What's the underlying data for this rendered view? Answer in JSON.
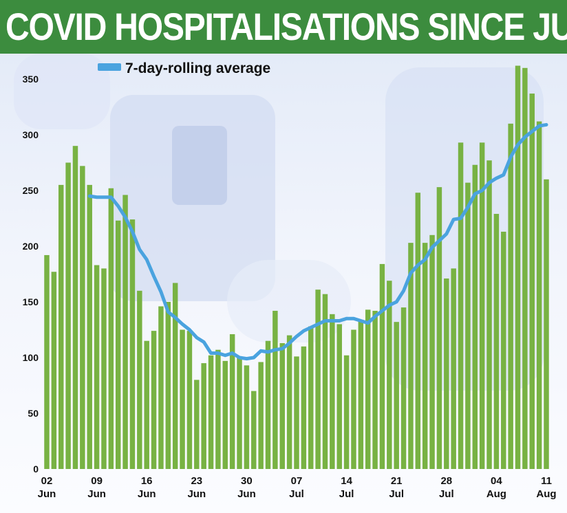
{
  "header": {
    "title": "COVID HOSPITALISATIONS SINCE JUNE"
  },
  "colors": {
    "banner": "#3c8c3e",
    "bar": "#78b243",
    "line": "#4aa3df",
    "text": "#111111"
  },
  "chart_data": {
    "type": "bar",
    "title": "COVID HOSPITALISATIONS SINCE JUNE",
    "xlabel": "",
    "ylabel": "",
    "ylim": [
      0,
      350
    ],
    "yticks": [
      0,
      50,
      100,
      150,
      200,
      250,
      300,
      350
    ],
    "grid": false,
    "legend_position": "top-left",
    "x_tick_labels": [
      {
        "day": "02",
        "month": "Jun"
      },
      {
        "day": "09",
        "month": "Jun"
      },
      {
        "day": "16",
        "month": "Jun"
      },
      {
        "day": "23",
        "month": "Jun"
      },
      {
        "day": "30",
        "month": "Jun"
      },
      {
        "day": "07",
        "month": "Jul"
      },
      {
        "day": "14",
        "month": "Jul"
      },
      {
        "day": "21",
        "month": "Jul"
      },
      {
        "day": "28",
        "month": "Jul"
      },
      {
        "day": "04",
        "month": "Aug"
      },
      {
        "day": "11",
        "month": "Aug"
      }
    ],
    "categories": [
      "2020-06-02",
      "2020-06-03",
      "2020-06-04",
      "2020-06-05",
      "2020-06-06",
      "2020-06-07",
      "2020-06-08",
      "2020-06-09",
      "2020-06-10",
      "2020-06-11",
      "2020-06-12",
      "2020-06-13",
      "2020-06-14",
      "2020-06-15",
      "2020-06-16",
      "2020-06-17",
      "2020-06-18",
      "2020-06-19",
      "2020-06-20",
      "2020-06-21",
      "2020-06-22",
      "2020-06-23",
      "2020-06-24",
      "2020-06-25",
      "2020-06-26",
      "2020-06-27",
      "2020-06-28",
      "2020-06-29",
      "2020-06-30",
      "2020-07-01",
      "2020-07-02",
      "2020-07-03",
      "2020-07-04",
      "2020-07-05",
      "2020-07-06",
      "2020-07-07",
      "2020-07-08",
      "2020-07-09",
      "2020-07-10",
      "2020-07-11",
      "2020-07-12",
      "2020-07-13",
      "2020-07-14",
      "2020-07-15",
      "2020-07-16",
      "2020-07-17",
      "2020-07-18",
      "2020-07-19",
      "2020-07-20",
      "2020-07-21",
      "2020-07-22",
      "2020-07-23",
      "2020-07-24",
      "2020-07-25",
      "2020-07-26",
      "2020-07-27",
      "2020-07-28",
      "2020-07-29",
      "2020-07-30",
      "2020-07-31",
      "2020-08-01",
      "2020-08-02",
      "2020-08-03",
      "2020-08-04",
      "2020-08-05",
      "2020-08-06",
      "2020-08-07",
      "2020-08-08",
      "2020-08-09",
      "2020-08-10",
      "2020-08-11"
    ],
    "series": [
      {
        "name": "",
        "type": "bar",
        "values": [
          192,
          177,
          255,
          275,
          290,
          272,
          255,
          183,
          180,
          252,
          223,
          246,
          224,
          160,
          115,
          124,
          146,
          150,
          167,
          125,
          124,
          80,
          95,
          102,
          107,
          97,
          121,
          100,
          93,
          70,
          96,
          115,
          142,
          113,
          120,
          101,
          110,
          128,
          161,
          157,
          139,
          130,
          102,
          125,
          133,
          143,
          142,
          184,
          169,
          132,
          145,
          203,
          248,
          203,
          210,
          253,
          171,
          180,
          293,
          257,
          273,
          293,
          277,
          229,
          213,
          310,
          362,
          360,
          337,
          312,
          260
        ]
      },
      {
        "name": "7-day-rolling average",
        "type": "line",
        "values": [
          null,
          null,
          null,
          null,
          null,
          null,
          245,
          244,
          244,
          244,
          236,
          226,
          213,
          197,
          188,
          173,
          159,
          141,
          136,
          130,
          125,
          118,
          114,
          104,
          104,
          102,
          104,
          100,
          99,
          100,
          106,
          105,
          107,
          108,
          113,
          119,
          124,
          127,
          130,
          133,
          133,
          133,
          135,
          135,
          133,
          131,
          137,
          142,
          147,
          150,
          160,
          176,
          183,
          188,
          199,
          205,
          211,
          224,
          225,
          235,
          247,
          250,
          257,
          261,
          264,
          280,
          291,
          298,
          303,
          308,
          309
        ]
      }
    ]
  }
}
